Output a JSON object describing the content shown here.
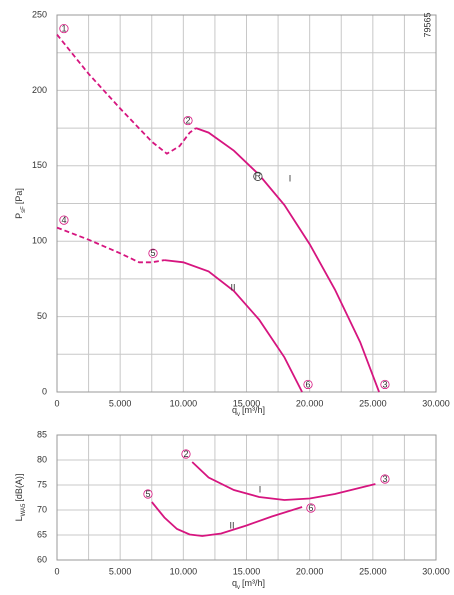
{
  "chart_data": [
    {
      "type": "line",
      "code": "79565",
      "ylabel": {
        "main": "P",
        "sub": "sF",
        "unit": "[Pa]"
      },
      "xlabel": {
        "main": "q",
        "sub": "v",
        "unit": "[m³/h]"
      },
      "xlim": [
        0,
        30000
      ],
      "xticks": [
        0,
        {
          "value": 5000,
          "label": "5.000"
        },
        {
          "value": 10000,
          "label": "10.000"
        },
        {
          "value": 15000,
          "label": "15.000"
        },
        {
          "value": 20000,
          "label": "20.000"
        },
        {
          "value": 25000,
          "label": "25.000"
        },
        {
          "value": 30000,
          "label": "30.000"
        }
      ],
      "x_minor_ticks": [
        2500,
        7500,
        12500,
        17500,
        22500,
        27500
      ],
      "ylim": [
        0,
        250
      ],
      "yticks": [
        0,
        50,
        100,
        150,
        200,
        250
      ],
      "y_minor_ticks": [
        25,
        75,
        125,
        175,
        225
      ],
      "grid": true,
      "series": [
        {
          "color": "#d6157f",
          "style": "dashed",
          "x": [
            0,
            2500,
            5000,
            7500,
            8700,
            9700,
            10500,
            11000
          ],
          "values": [
            237,
            211,
            188,
            166,
            158,
            163,
            172,
            175
          ]
        },
        {
          "color": "#d6157f",
          "style": "solid",
          "x": [
            11000,
            12000,
            14000,
            16000,
            18000,
            20000,
            22000,
            24000,
            25500
          ],
          "values": [
            175,
            172,
            160,
            144,
            124,
            98,
            68,
            33,
            0
          ]
        },
        {
          "color": "#d6157f",
          "style": "dashed",
          "x": [
            0,
            2500,
            5000,
            6500,
            7500,
            8500
          ],
          "values": [
            109,
            101,
            92,
            86,
            86,
            87.5
          ]
        },
        {
          "color": "#d6157f",
          "style": "solid",
          "x": [
            8500,
            10000,
            12000,
            14000,
            16000,
            18000,
            19400
          ],
          "values": [
            87.5,
            86,
            80,
            67,
            48,
            23,
            0
          ]
        }
      ],
      "markers": [
        {
          "label": "1",
          "x": 550,
          "y": 241,
          "color": "#d6157f"
        },
        {
          "label": "2",
          "x": 10370,
          "y": 180,
          "color": "#d6157f"
        },
        {
          "label": "R",
          "x": 15900,
          "y": 143,
          "color": "#333333"
        },
        {
          "label": "3",
          "x": 25960,
          "y": 5,
          "color": "#d6157f"
        },
        {
          "label": "4",
          "x": 550,
          "y": 114,
          "color": "#d6157f"
        },
        {
          "label": "5",
          "x": 7600,
          "y": 92,
          "color": "#d6157f"
        },
        {
          "label": "6",
          "x": 19870,
          "y": 5,
          "color": "#d6157f"
        }
      ],
      "labels": [
        {
          "text": "I",
          "x": 18440,
          "y": 141,
          "color": "#d6157f"
        },
        {
          "text": "II",
          "x": 13930,
          "y": 69,
          "color": "#d6157f"
        }
      ]
    },
    {
      "type": "line",
      "ylabel": {
        "main": "L",
        "sub": "WA5",
        "unit": "[dB(A)]"
      },
      "xlabel": {
        "main": "q",
        "sub": "v",
        "unit": "[m³/h]"
      },
      "xlim": [
        0,
        30000
      ],
      "xticks": [
        0,
        {
          "value": 5000,
          "label": "5.000"
        },
        {
          "value": 10000,
          "label": "10.000"
        },
        {
          "value": 15000,
          "label": "15.000"
        },
        {
          "value": 20000,
          "label": "20.000"
        },
        {
          "value": 25000,
          "label": "25.000"
        },
        {
          "value": 30000,
          "label": "30.000"
        }
      ],
      "x_minor_ticks": [
        2500,
        7500,
        12500,
        17500,
        22500,
        27500
      ],
      "ylim": [
        60,
        85
      ],
      "yticks": [
        60,
        65,
        70,
        75,
        80,
        85
      ],
      "grid": true,
      "series": [
        {
          "color": "#d6157f",
          "style": "solid",
          "x": [
            10700,
            12000,
            14000,
            16000,
            18000,
            20000,
            22000,
            25200
          ],
          "values": [
            79.6,
            76.5,
            74,
            72.6,
            72,
            72.3,
            73.2,
            75.2
          ]
        },
        {
          "color": "#d6157f",
          "style": "solid",
          "x": [
            7500,
            8500,
            9500,
            10500,
            11500,
            13000,
            15000,
            17000,
            19400
          ],
          "values": [
            71.6,
            68.5,
            66.2,
            65.1,
            64.8,
            65.3,
            66.9,
            68.7,
            70.6
          ]
        }
      ],
      "markers": [
        {
          "label": "2",
          "x": 10210,
          "y": 81.2,
          "color": "#d6157f"
        },
        {
          "label": "3",
          "x": 25960,
          "y": 76.2,
          "color": "#d6157f"
        },
        {
          "label": "5",
          "x": 7200,
          "y": 73.2,
          "color": "#d6157f"
        },
        {
          "label": "6",
          "x": 20100,
          "y": 70.4,
          "color": "#d6157f"
        }
      ],
      "labels": [
        {
          "text": "I",
          "x": 16070,
          "y": 74,
          "color": "#d6157f"
        },
        {
          "text": "II",
          "x": 13850,
          "y": 66.8,
          "color": "#d6157f"
        }
      ]
    }
  ]
}
